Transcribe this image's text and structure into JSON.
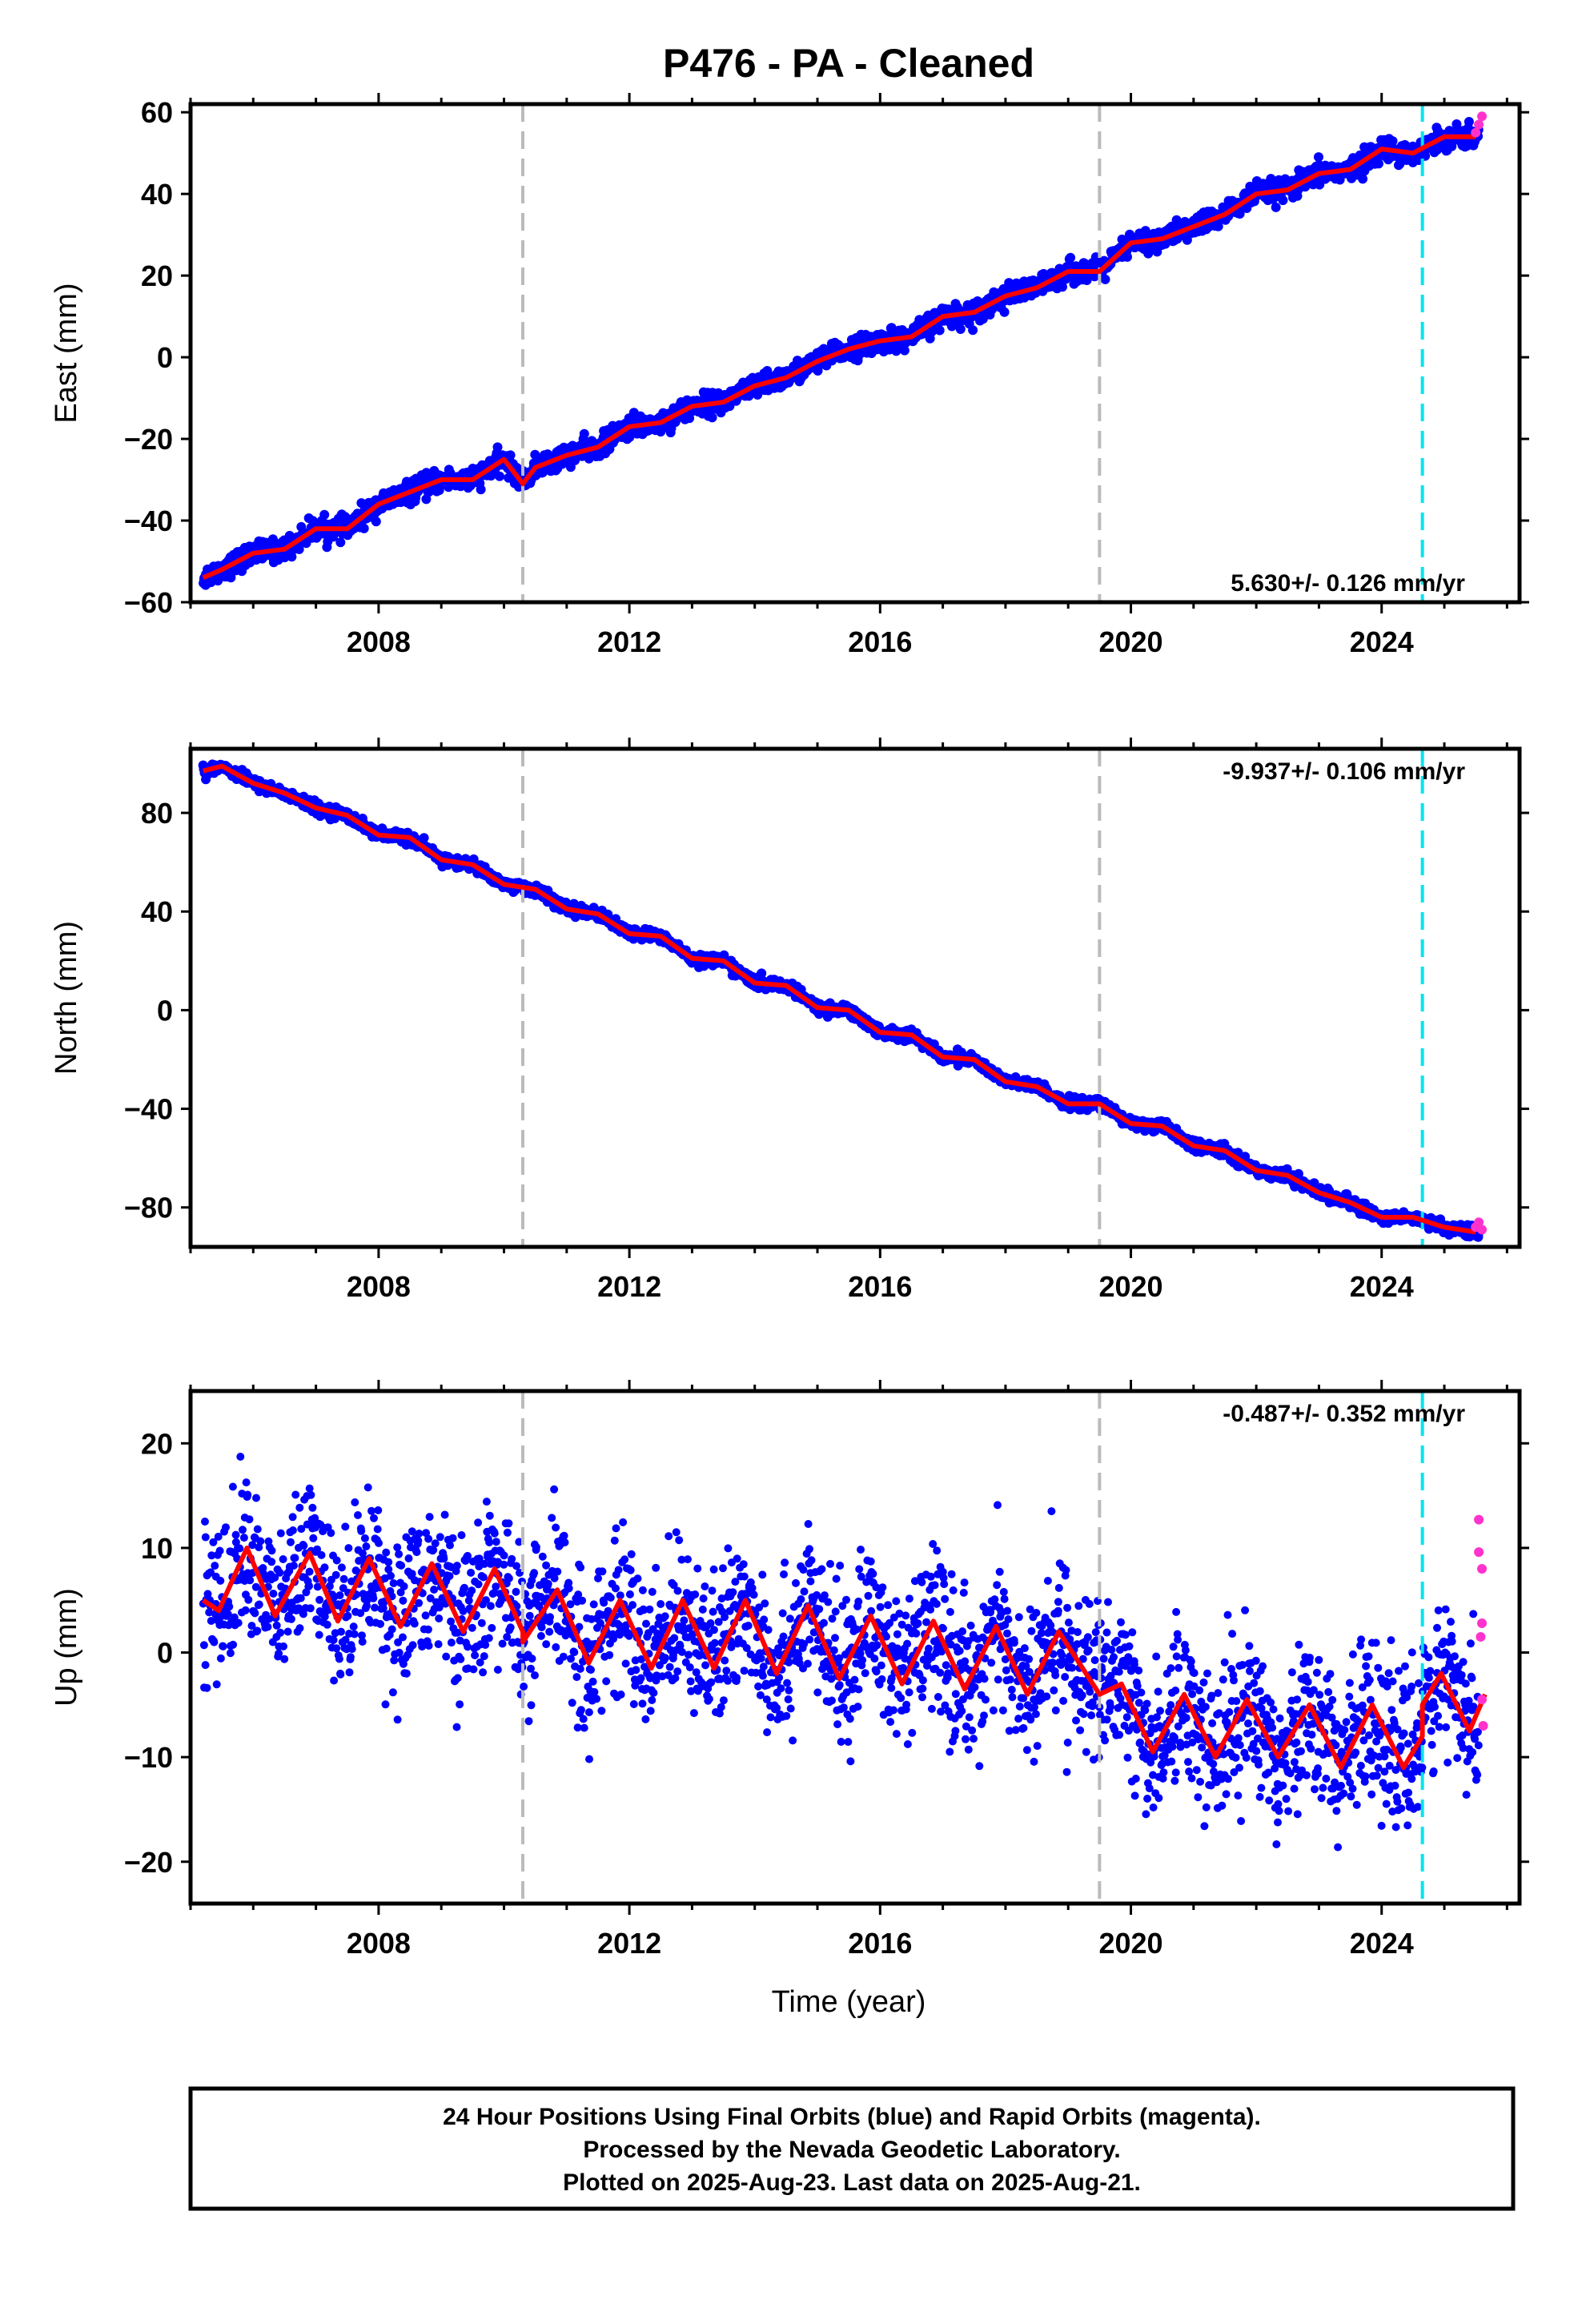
{
  "title": "P476  - PA - Cleaned",
  "xlabel": "Time (year)",
  "colors": {
    "final": "#0000ff",
    "rapid": "#ff33cc",
    "model": "#ff0000",
    "break_gray": "#bbbbbb",
    "break_cyan": "#00e5ee"
  },
  "footer": {
    "line1": "24 Hour Positions Using Final Orbits (blue) and Rapid Orbits (magenta).",
    "line2": "Processed by the Nevada Geodetic Laboratory.",
    "line3": "Plotted on 2025-Aug-23. Last data on 2025-Aug-21."
  },
  "chart_data": [
    {
      "type": "scatter",
      "component": "East",
      "ylabel": "East (mm)",
      "xlim": [
        2005.0,
        2026.2
      ],
      "ylim": [
        -60,
        62
      ],
      "yticks": [
        "60",
        "40",
        "20",
        "0",
        "−20",
        "−40",
        "−60"
      ],
      "ytick_values": [
        60,
        40,
        20,
        0,
        -20,
        -40,
        -60
      ],
      "xticks": [
        "2008",
        "2012",
        "2016",
        "2020",
        "2024"
      ],
      "xtick_values": [
        2008,
        2012,
        2016,
        2020,
        2024
      ],
      "rate_label": "5.630+/- 0.126 mm/yr",
      "rate_position": "bottom-right",
      "breaks_gray": [
        2010.3,
        2019.5
      ],
      "breaks_cyan": [
        2024.65
      ],
      "model_series": {
        "name": "model",
        "x": [
          2005.2,
          2005.5,
          2006.0,
          2006.5,
          2007.0,
          2007.5,
          2008.0,
          2008.5,
          2009.0,
          2009.5,
          2010.0,
          2010.3,
          2010.5,
          2011.0,
          2011.5,
          2012.0,
          2012.5,
          2013.0,
          2013.5,
          2014.0,
          2014.5,
          2015.0,
          2015.5,
          2016.0,
          2016.5,
          2017.0,
          2017.5,
          2018.0,
          2018.5,
          2019.0,
          2019.5,
          2020.0,
          2020.5,
          2021.0,
          2021.5,
          2022.0,
          2022.5,
          2023.0,
          2023.5,
          2024.0,
          2024.5,
          2025.0,
          2025.5
        ],
        "y": [
          -54,
          -52,
          -48,
          -47,
          -42,
          -42,
          -36,
          -33,
          -30,
          -30,
          -25,
          -31,
          -27,
          -24,
          -22,
          -17,
          -16,
          -12,
          -11,
          -7,
          -5,
          -1,
          2,
          4,
          5,
          10,
          11,
          15,
          17,
          21,
          21,
          28,
          29,
          32,
          35,
          40,
          41,
          45,
          46,
          51,
          50,
          54,
          54
        ]
      },
      "rapid_points": {
        "x": [
          2025.5,
          2025.55,
          2025.6
        ],
        "y": [
          55,
          57,
          59
        ]
      }
    },
    {
      "type": "scatter",
      "component": "North",
      "ylabel": "North (mm)",
      "xlim": [
        2005.0,
        2026.2
      ],
      "ylim": [
        -96,
        106
      ],
      "yticks": [
        "80",
        "40",
        "0",
        "−40",
        "−80"
      ],
      "ytick_values": [
        80,
        40,
        0,
        -40,
        -80
      ],
      "xticks": [
        "2008",
        "2012",
        "2016",
        "2020",
        "2024"
      ],
      "xtick_values": [
        2008,
        2012,
        2016,
        2020,
        2024
      ],
      "rate_label": "-9.937+/- 0.106 mm/yr",
      "rate_position": "top-right",
      "breaks_gray": [
        2010.3,
        2019.5
      ],
      "breaks_cyan": [
        2024.65
      ],
      "model_series": {
        "name": "model",
        "x": [
          2005.2,
          2005.5,
          2006.0,
          2006.5,
          2007.0,
          2007.5,
          2008.0,
          2008.5,
          2009.0,
          2009.5,
          2010.0,
          2010.5,
          2011.0,
          2011.5,
          2012.0,
          2012.5,
          2013.0,
          2013.5,
          2014.0,
          2014.5,
          2015.0,
          2015.5,
          2016.0,
          2016.5,
          2017.0,
          2017.5,
          2018.0,
          2018.5,
          2019.0,
          2019.5,
          2020.0,
          2020.5,
          2021.0,
          2021.5,
          2022.0,
          2022.5,
          2023.0,
          2023.5,
          2024.0,
          2024.5,
          2025.0,
          2025.5
        ],
        "y": [
          97,
          99,
          92,
          88,
          82,
          79,
          71,
          70,
          61,
          59,
          51,
          49,
          41,
          39,
          31,
          30,
          21,
          20,
          11,
          10,
          1,
          0,
          -9,
          -10,
          -19,
          -20,
          -29,
          -31,
          -38,
          -38,
          -46,
          -47,
          -55,
          -57,
          -65,
          -67,
          -74,
          -78,
          -84,
          -84,
          -88,
          -90
        ]
      },
      "rapid_points": {
        "x": [
          2025.5,
          2025.55,
          2025.6
        ],
        "y": [
          -88,
          -86,
          -89
        ]
      }
    },
    {
      "type": "scatter",
      "component": "Up",
      "ylabel": "Up (mm)",
      "xlim": [
        2005.0,
        2026.2
      ],
      "ylim": [
        -24,
        25
      ],
      "yticks": [
        "20",
        "10",
        "0",
        "−10",
        "−20"
      ],
      "ytick_values": [
        20,
        10,
        0,
        -10,
        -20
      ],
      "xticks": [
        "2008",
        "2012",
        "2016",
        "2020",
        "2024"
      ],
      "xtick_values": [
        2008,
        2012,
        2016,
        2020,
        2024
      ],
      "rate_label": "-0.487+/- 0.352 mm/yr",
      "rate_position": "top-right",
      "breaks_gray": [
        2010.3,
        2019.5
      ],
      "breaks_cyan": [
        2024.65
      ],
      "model_series": {
        "name": "model",
        "x": [
          2005.2,
          2005.45,
          2005.9,
          2006.35,
          2006.9,
          2007.35,
          2007.85,
          2008.35,
          2008.85,
          2009.35,
          2009.85,
          2010.3,
          2010.3,
          2010.85,
          2011.35,
          2011.85,
          2012.35,
          2012.85,
          2013.35,
          2013.85,
          2014.35,
          2014.85,
          2015.35,
          2015.85,
          2016.35,
          2016.85,
          2017.35,
          2017.85,
          2018.35,
          2018.85,
          2019.5,
          2019.5,
          2019.85,
          2020.35,
          2020.85,
          2021.35,
          2021.85,
          2022.35,
          2022.85,
          2023.35,
          2023.85,
          2024.35,
          2024.65,
          2024.65,
          2024.95,
          2025.4,
          2025.65
        ],
        "y": [
          5,
          4,
          10,
          3.5,
          9.5,
          3,
          9,
          2.5,
          8.5,
          2,
          8,
          2,
          1,
          6,
          -1,
          5,
          -1.5,
          5,
          -1.5,
          5,
          -2,
          4.5,
          -2.5,
          3.5,
          -3,
          3,
          -3.5,
          2.5,
          -4,
          2,
          -4,
          -4,
          -3,
          -9.5,
          -4,
          -10,
          -4.5,
          -10,
          -5,
          -11,
          -5,
          -11,
          -8,
          -5,
          -2,
          -7.5,
          -4
        ]
      },
      "rapid_points": {
        "x": [
          2025.55,
          2025.55,
          2025.6,
          2025.6,
          2025.58,
          2025.6,
          2025.62
        ],
        "y": [
          12.7,
          9.6,
          8.0,
          2.8,
          1.5,
          -4.5,
          -7.0
        ]
      }
    }
  ]
}
